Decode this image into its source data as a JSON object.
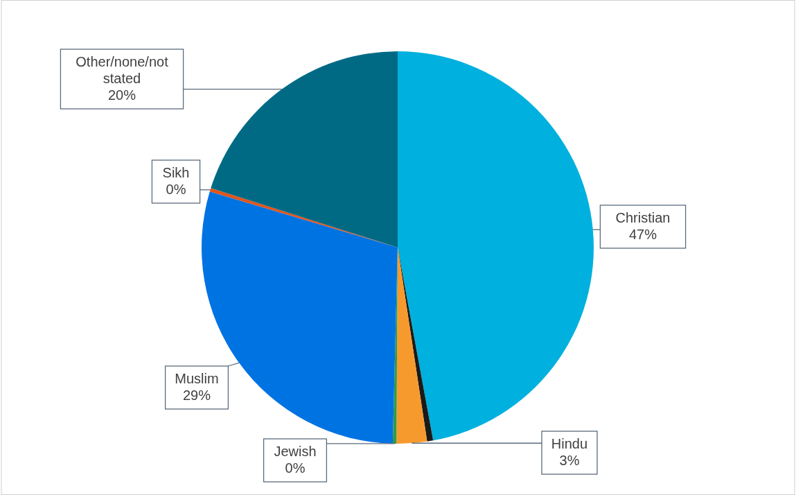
{
  "chart_data": {
    "type": "pie",
    "categories": [
      "Christian",
      null,
      "Hindu",
      "Jewish",
      "Muslim",
      "Sikh",
      "Other/none/not stated"
    ],
    "values": [
      47.1,
      0.5,
      2.5,
      0.3,
      29.2,
      0.3,
      20.1
    ],
    "value_labels": [
      "47%",
      null,
      "3%",
      "0%",
      "29%",
      "0%",
      "20%"
    ],
    "colors": [
      "#00b0de",
      "#1a1a1a",
      "#f79a2e",
      "#2e9b4a",
      "#0073e2",
      "#e2541b",
      "#006a85"
    ]
  }
}
